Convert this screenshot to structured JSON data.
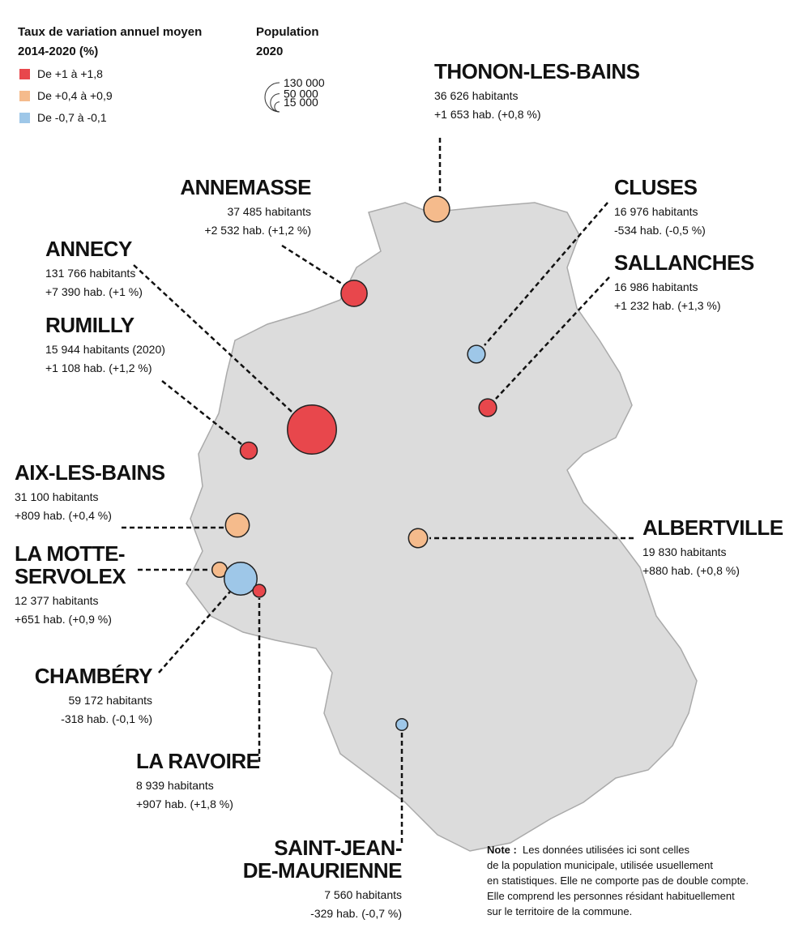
{
  "legend": {
    "rate_title": [
      "Taux de variation annuel moyen",
      "2014-2020 (%)"
    ],
    "rate_items": [
      {
        "label": "De +1 à +1,8",
        "color": "#e8474c"
      },
      {
        "label": "De +0,4 à +0,9",
        "color": "#f5bb8c"
      },
      {
        "label": "De -0,7 à -0,1",
        "color": "#9ec7e8"
      }
    ],
    "population_title": [
      "Population",
      "2020"
    ],
    "population_sizes": [
      {
        "value": 130000,
        "label": "130 000"
      },
      {
        "value": 50000,
        "label": "50 000"
      },
      {
        "value": 15000,
        "label": "15 000"
      }
    ]
  },
  "cities": [
    {
      "name": [
        "THONON-LES-BAINS"
      ],
      "population": 36626,
      "population_label": "36 626 habitants",
      "change": "+1 653 hab. (+0,8 %)",
      "rate_class": 1
    },
    {
      "name": [
        "ANNEMASSE"
      ],
      "population": 37485,
      "population_label": "37 485 habitants",
      "change": "+2 532 hab. (+1,2 %)",
      "rate_class": 0
    },
    {
      "name": [
        "CLUSES"
      ],
      "population": 16976,
      "population_label": "16 976 habitants",
      "change": "-534 hab. (-0,5 %)",
      "rate_class": 2
    },
    {
      "name": [
        "SALLANCHES"
      ],
      "population": 16986,
      "population_label": "16 986 habitants",
      "change": "+1 232 hab. (+1,3 %)",
      "rate_class": 0
    },
    {
      "name": [
        "ANNECY"
      ],
      "population": 131766,
      "population_label": "131 766 habitants",
      "change": "+7 390 hab. (+1 %)",
      "rate_class": 0
    },
    {
      "name": [
        "RUMILLY"
      ],
      "population": 15944,
      "population_label": "15 944 habitants (2020)",
      "change": "+1 108 hab. (+1,2 %)",
      "rate_class": 0
    },
    {
      "name": [
        "AIX-LES-BAINS"
      ],
      "population": 31100,
      "population_label": "31 100 habitants",
      "change": "+809 hab. (+0,4 %)",
      "rate_class": 1
    },
    {
      "name": [
        "ALBERTVILLE"
      ],
      "population": 19830,
      "population_label": "19 830 habitants",
      "change": "+880 hab. (+0,8 %)",
      "rate_class": 1
    },
    {
      "name": [
        "LA MOTTE-",
        "SERVOLEX"
      ],
      "population": 12377,
      "population_label": "12 377 habitants",
      "change": "+651 hab. (+0,9 %)",
      "rate_class": 1
    },
    {
      "name": [
        "CHAMBÉRY"
      ],
      "population": 59172,
      "population_label": "59 172 habitants",
      "change": "-318 hab. (-0,1 %)",
      "rate_class": 2
    },
    {
      "name": [
        "LA RAVOIRE"
      ],
      "population": 8939,
      "population_label": "8 939 habitants",
      "change": "+907 hab. (+1,8 %)",
      "rate_class": 0
    },
    {
      "name": [
        "SAINT-JEAN-",
        "DE-MAURIENNE"
      ],
      "population": 7560,
      "population_label": "7 560 habitants",
      "change": "-329 hab. (-0,7 %)",
      "rate_class": 2
    }
  ],
  "note": {
    "label": "Note :",
    "lines": [
      "Les données utilisées ici sont celles",
      "de la population municipale, utilisée usuellement",
      "en statistiques. Elle ne comporte pas de double compte.",
      "Elle comprend les personnes résidant habituellement",
      "sur le territoire de la commune."
    ]
  }
}
